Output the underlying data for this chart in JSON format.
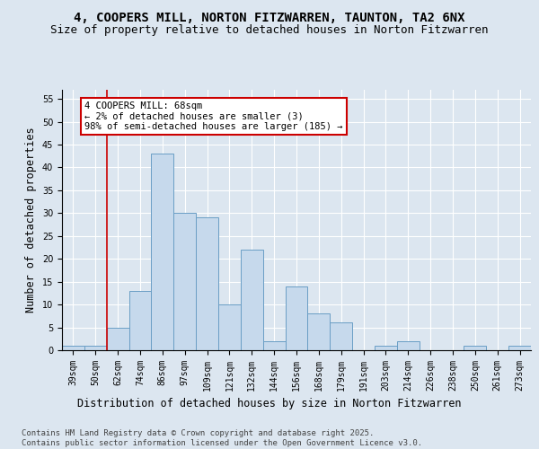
{
  "title_line1": "4, COOPERS MILL, NORTON FITZWARREN, TAUNTON, TA2 6NX",
  "title_line2": "Size of property relative to detached houses in Norton Fitzwarren",
  "xlabel": "Distribution of detached houses by size in Norton Fitzwarren",
  "ylabel": "Number of detached properties",
  "categories": [
    "39sqm",
    "50sqm",
    "62sqm",
    "74sqm",
    "86sqm",
    "97sqm",
    "109sqm",
    "121sqm",
    "132sqm",
    "144sqm",
    "156sqm",
    "168sqm",
    "179sqm",
    "191sqm",
    "203sqm",
    "214sqm",
    "226sqm",
    "238sqm",
    "250sqm",
    "261sqm",
    "273sqm"
  ],
  "values": [
    1,
    1,
    5,
    13,
    43,
    30,
    29,
    10,
    22,
    2,
    14,
    8,
    6,
    0,
    1,
    2,
    0,
    0,
    1,
    0,
    1
  ],
  "bar_color": "#c6d9ec",
  "bar_edge_color": "#6a9ec5",
  "bar_edge_width": 0.7,
  "vline_color": "#cc0000",
  "annotation_text": "4 COOPERS MILL: 68sqm\n← 2% of detached houses are smaller (3)\n98% of semi-detached houses are larger (185) →",
  "annotation_box_facecolor": "#ffffff",
  "annotation_box_edgecolor": "#cc0000",
  "ylim": [
    0,
    57
  ],
  "yticks": [
    0,
    5,
    10,
    15,
    20,
    25,
    30,
    35,
    40,
    45,
    50,
    55
  ],
  "bg_color": "#dce6f0",
  "plot_bg_color": "#dce6f0",
  "footer_text": "Contains HM Land Registry data © Crown copyright and database right 2025.\nContains public sector information licensed under the Open Government Licence v3.0.",
  "title_fontsize": 10,
  "subtitle_fontsize": 9,
  "axis_label_fontsize": 8.5,
  "tick_fontsize": 7,
  "annotation_fontsize": 7.5,
  "footer_fontsize": 6.5
}
